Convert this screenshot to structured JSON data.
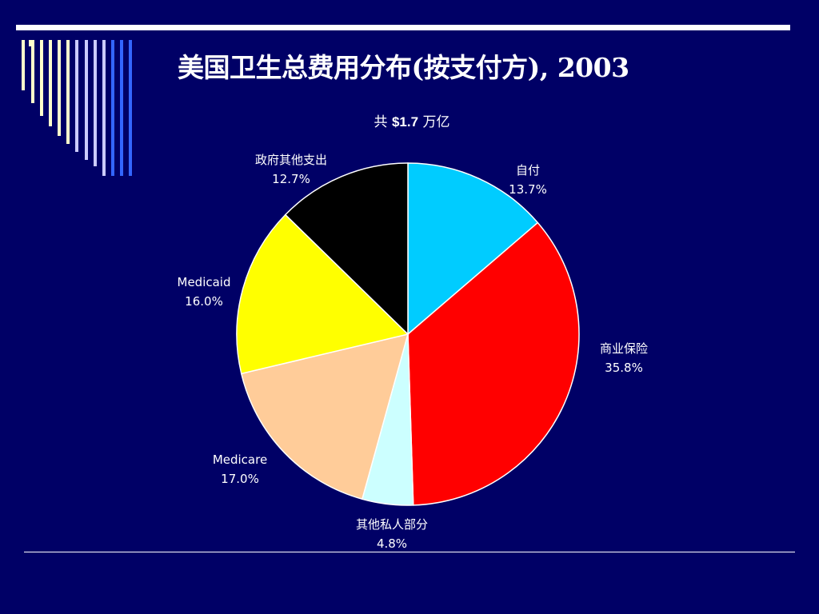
{
  "slide": {
    "title": "美国卫生总费用分布(按支付方), 2003",
    "subtitle_prefix": "共",
    "subtitle_amount": "$1.7",
    "subtitle_suffix": "万亿"
  },
  "colors": {
    "background": "#000066",
    "rule": "#ffffff",
    "deco_light": "#ffffcc",
    "deco_mid": "#ccccff",
    "deco_blue": "#3366ff"
  },
  "chart_data": {
    "type": "pie",
    "title": "美国卫生总费用分布(按支付方), 2003",
    "subtitle": "共 $1.7 万亿",
    "start_angle_deg": 0,
    "direction": "clockwise",
    "slices": [
      {
        "label": "自付",
        "value": 13.7,
        "value_label": "13.7%",
        "color": "#00ccff"
      },
      {
        "label": "商业保险",
        "value": 35.8,
        "value_label": "35.8%",
        "color": "#ff0000"
      },
      {
        "label": "其他私人部分",
        "value": 4.8,
        "value_label": "4.8%",
        "color": "#ccffff"
      },
      {
        "label": "Medicare",
        "value": 17.0,
        "value_label": "17.0%",
        "color": "#ffcc99"
      },
      {
        "label": "Medicaid",
        "value": 16.0,
        "value_label": "16.0%",
        "color": "#ffff00"
      },
      {
        "label": "政府其他支出",
        "value": 12.7,
        "value_label": "12.7%",
        "color": "#000000"
      }
    ]
  }
}
